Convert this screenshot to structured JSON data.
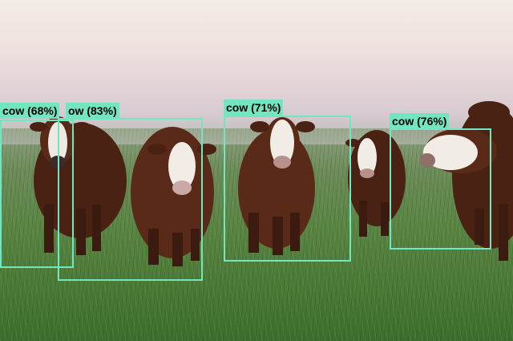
{
  "detections": [
    {
      "label": "cow (68%)"
    },
    {
      "label": "ow (83%)"
    },
    {
      "label": "cow (71%)"
    },
    {
      "label": "cow (76%)"
    }
  ],
  "colors": {
    "box": "#72e6c0",
    "label_text": "#000000",
    "cow_coat": "#5a2a18",
    "cow_face": "#f2ece6",
    "grass": "#4f7e3a",
    "sky": "#efe3df"
  }
}
